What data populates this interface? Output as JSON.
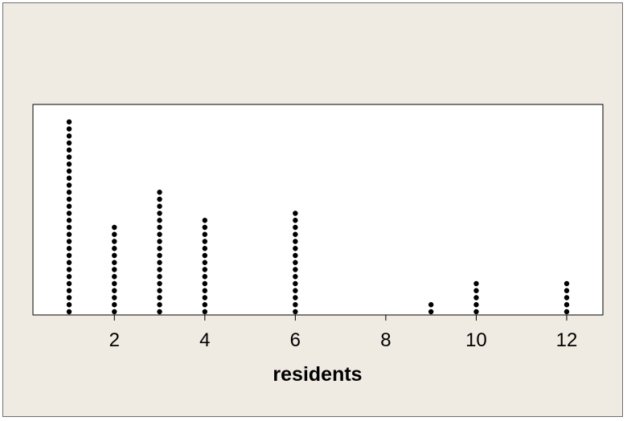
{
  "chart_data": {
    "type": "dotplot",
    "title": "",
    "xlabel": "residents",
    "ylabel": "",
    "xlim": [
      0.2,
      12.8
    ],
    "xticks": [
      2,
      4,
      6,
      8,
      10,
      12
    ],
    "grid": false,
    "legend": "none",
    "dot_color": "#000000",
    "points": [
      {
        "x": 1,
        "count": 28
      },
      {
        "x": 2,
        "count": 13
      },
      {
        "x": 3,
        "count": 18
      },
      {
        "x": 4,
        "count": 14
      },
      {
        "x": 6,
        "count": 15
      },
      {
        "x": 9,
        "count": 2
      },
      {
        "x": 10,
        "count": 5
      },
      {
        "x": 12,
        "count": 5
      }
    ]
  }
}
